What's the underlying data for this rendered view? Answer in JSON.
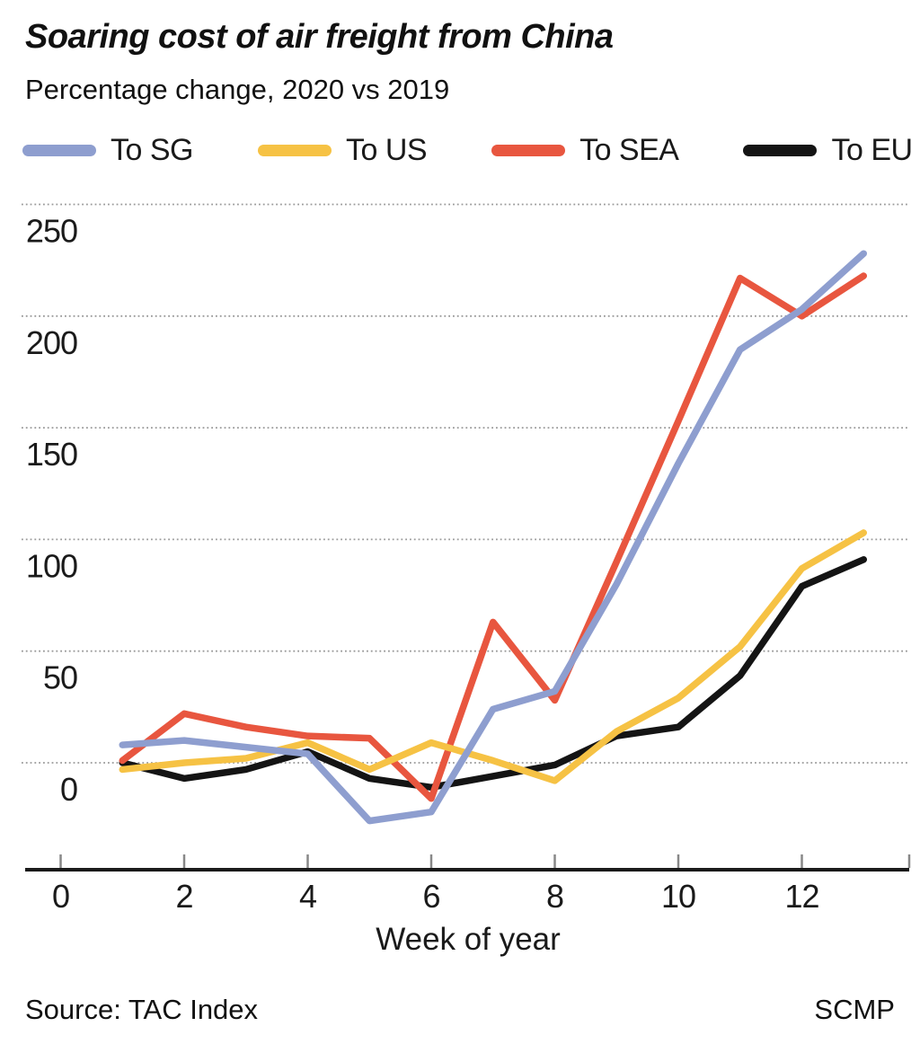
{
  "header": {
    "title": "Soaring cost of air freight from China",
    "subtitle": "Percentage change, 2020 vs 2019"
  },
  "chart_data": {
    "type": "line",
    "title": "Soaring cost of air freight from China",
    "subtitle": "Percentage change, 2020 vs 2019",
    "xlabel": "Week of year",
    "ylabel": "",
    "x": [
      1,
      2,
      3,
      4,
      5,
      6,
      7,
      8,
      9,
      10,
      11,
      12,
      13
    ],
    "x_ticks": [
      0,
      2,
      4,
      6,
      8,
      10,
      12
    ],
    "y_ticks": [
      0,
      50,
      100,
      150,
      200,
      250
    ],
    "xlim": [
      0,
      13.7
    ],
    "ylim": [
      -47,
      262
    ],
    "grid": "horizontal dotted",
    "legend_position": "top",
    "series": [
      {
        "name": "To SG",
        "color": "#8e9ecf",
        "values": [
          8,
          10,
          7,
          4,
          -26,
          -22,
          24,
          32,
          80,
          134,
          185,
          203,
          228
        ]
      },
      {
        "name": "To US",
        "color": "#f6c244",
        "values": [
          -3,
          0,
          2,
          9,
          -3,
          9,
          1,
          -8,
          14,
          29,
          52,
          87,
          103
        ]
      },
      {
        "name": "To SEA",
        "color": "#e8563f",
        "values": [
          1,
          22,
          16,
          12,
          11,
          -16,
          63,
          28,
          90,
          153,
          217,
          200,
          218
        ]
      },
      {
        "name": "To EU",
        "color": "#141414",
        "values": [
          0,
          -7,
          -3,
          5,
          -7,
          -11,
          -6,
          -1,
          12,
          16,
          39,
          79,
          91
        ]
      }
    ]
  },
  "footer": {
    "source": "Source: TAC Index",
    "credit": "SCMP"
  }
}
